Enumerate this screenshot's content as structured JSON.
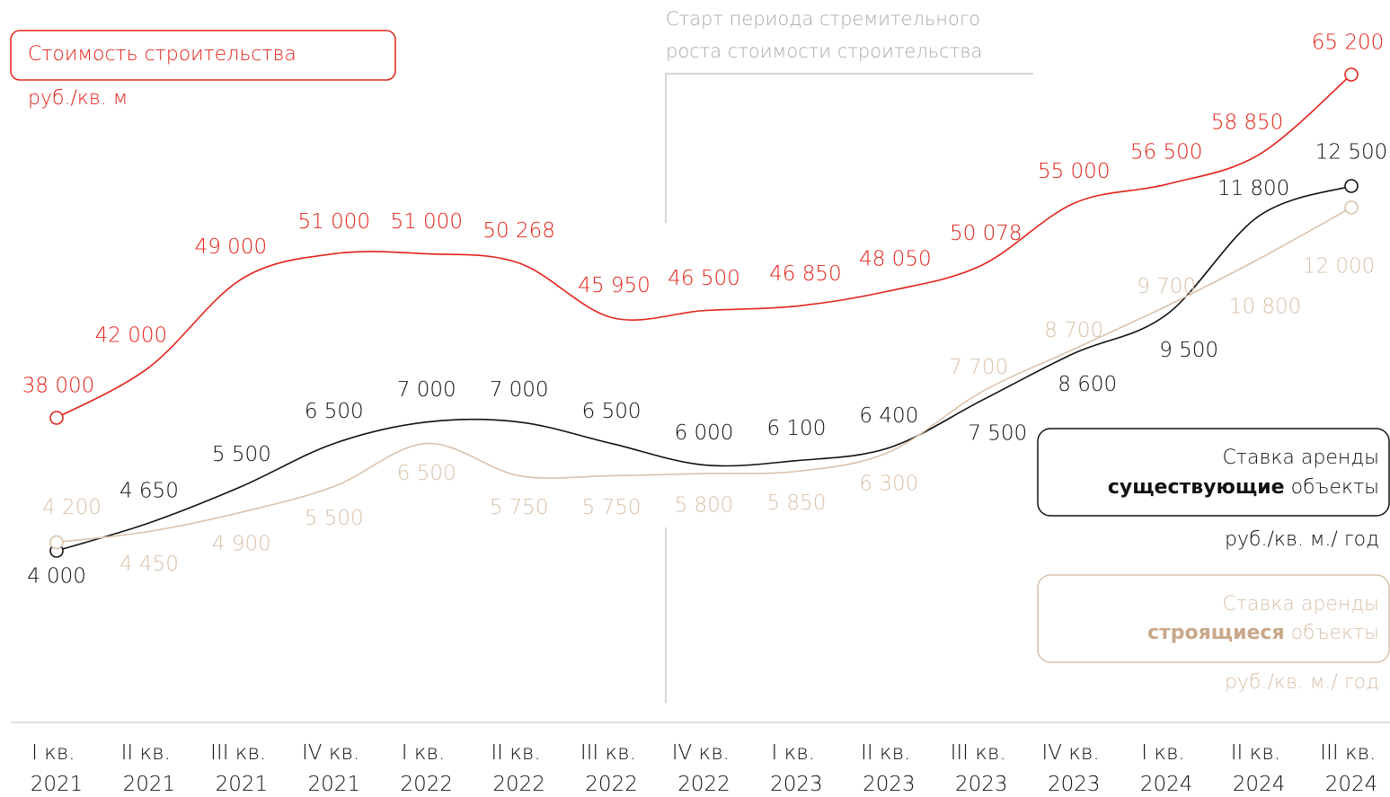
{
  "chart_data": {
    "type": "line",
    "annotation": [
      "Старт периода стремительного",
      "роста стоимости строительства"
    ],
    "categories": [
      "I кв. 2021",
      "II кв. 2021",
      "III кв. 2021",
      "IV кв. 2021",
      "I кв. 2022",
      "II кв. 2022",
      "III кв. 2022",
      "IV кв. 2022",
      "I кв. 2023",
      "II кв. 2023",
      "III кв. 2023",
      "IV кв. 2023",
      "I кв. 2024",
      "II кв. 2024",
      "III кв. 2024"
    ],
    "series": [
      {
        "name": "Стоимость строительства",
        "unit": "руб./кв. м",
        "color": "#e2231a",
        "values": [
          38000,
          42000,
          49000,
          51000,
          51000,
          50268,
          45950,
          46500,
          46850,
          48050,
          50078,
          55000,
          56500,
          58850,
          65200
        ],
        "value_labels": [
          "38 000",
          "42 000",
          "49 000",
          "51 000",
          "51 000",
          "50 268",
          "45 950",
          "46 500",
          "46 850",
          "48 050",
          "50 078",
          "55 000",
          "56 500",
          "58 850",
          "65 200"
        ]
      },
      {
        "name": "Ставка аренды",
        "name_bold": "существующие",
        "name_rest": "объекты",
        "unit": "руб./кв. м./ год",
        "color": "#111111",
        "values": [
          4000,
          4650,
          5500,
          6500,
          7000,
          7000,
          6500,
          6000,
          6100,
          6400,
          7500,
          8600,
          9500,
          11800,
          12500
        ],
        "value_labels": [
          "4 000",
          "4 650",
          "5 500",
          "6 500",
          "7 000",
          "7 000",
          "6 500",
          "6 000",
          "6 100",
          "6 400",
          "7 500",
          "8 600",
          "9 500",
          "11 800",
          "12 500"
        ]
      },
      {
        "name": "Ставка аренды",
        "name_bold": "строящиеся",
        "name_rest": "объекты",
        "unit": "руб./кв. м./ год",
        "color": "#d9c2ab",
        "values": [
          4200,
          4450,
          4900,
          5500,
          6500,
          5750,
          5750,
          5800,
          5850,
          6300,
          7700,
          8700,
          9700,
          10800,
          12000
        ],
        "value_labels": [
          "4 200",
          "4 450",
          "4 900",
          "5 500",
          "6 500",
          "5 750",
          "5 750",
          "5 800",
          "5 850",
          "6 300",
          "7 700",
          "8 700",
          "9 700",
          "10 800",
          "12 000"
        ]
      }
    ]
  }
}
